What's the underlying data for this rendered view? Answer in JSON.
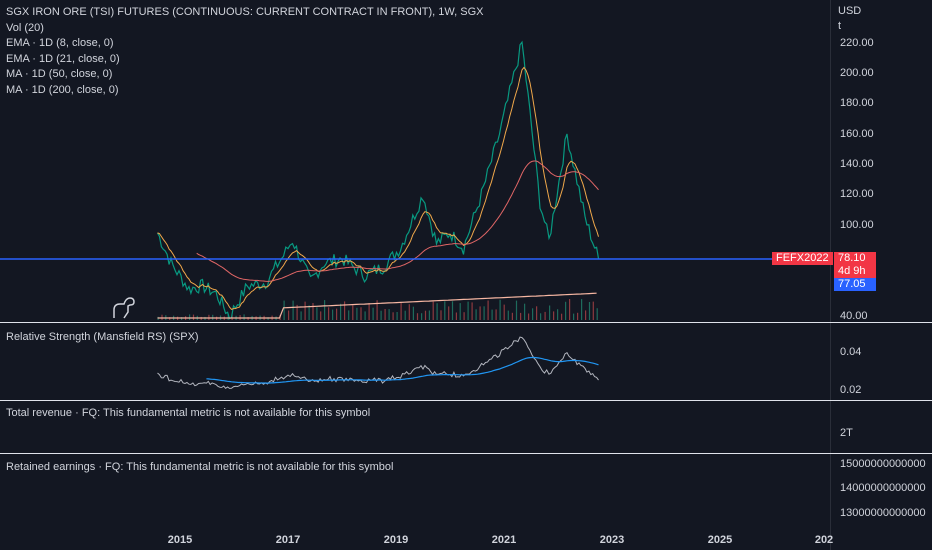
{
  "legend": {
    "title": "SGX IRON ORE (TSI) FUTURES (CONTINUOUS: CURRENT CONTRACT IN FRONT), 1W, SGX",
    "vol": "Vol (20)",
    "ema8": "EMA · 1D (8, close, 0)",
    "ema21": "EMA · 1D (21, close, 0)",
    "ma50": "MA · 1D (50, close, 0)",
    "ma200": "MA · 1D (200, close, 0)"
  },
  "price_axis": {
    "currency": "USD",
    "unit": "t",
    "ticks": [
      "220.00",
      "200.00",
      "180.00",
      "160.00",
      "140.00",
      "120.00",
      "100.00",
      "40.00"
    ]
  },
  "price_tags": {
    "symbol": "FEFX2022",
    "last": "78.10",
    "countdown": "4d 9h",
    "other": "77.05"
  },
  "rs_panel": {
    "label": "Relative Strength (Mansfield RS) (SPX)",
    "ticks": [
      "0.04",
      "0.02"
    ]
  },
  "revenue_panel": {
    "label": "Total revenue · FQ: This fundamental metric is not available for this symbol",
    "tick": "2T"
  },
  "earnings_panel": {
    "label": "Retained earnings · FQ: This fundamental metric is not available for this symbol",
    "ticks": [
      "15000000000000",
      "14000000000000",
      "13000000000000"
    ]
  },
  "time_axis": [
    "2015",
    "2017",
    "2019",
    "2021",
    "2023",
    "2025",
    "202"
  ],
  "colors": {
    "background": "#131722",
    "last_price_line": "#2962ff",
    "price_tag": "#f23645",
    "other_tag": "#2962ff",
    "ma200": "#e06666",
    "rs_line": "#d1d4dc",
    "rs_ma": "#2196f3"
  },
  "chart_data": {
    "type": "line",
    "series": [
      {
        "x": [
          "2014-08",
          "2014-11",
          "2015-03",
          "2015-06",
          "2015-09",
          "2015-12",
          "2016-04",
          "2016-08",
          "2016-12",
          "2017-02",
          "2017-06",
          "2017-09",
          "2018-01",
          "2018-06",
          "2018-10",
          "2019-02",
          "2019-07",
          "2019-10",
          "2020-01",
          "2020-04",
          "2020-08",
          "2020-12",
          "2021-05",
          "2021-09",
          "2021-11",
          "2022-03",
          "2022-07",
          "2022-10"
        ],
        "values": [
          95,
          75,
          58,
          60,
          55,
          40,
          60,
          62,
          80,
          90,
          63,
          75,
          78,
          67,
          72,
          85,
          120,
          88,
          95,
          85,
          120,
          160,
          220,
          115,
          90,
          160,
          105,
          78
        ]
      }
    ]
  }
}
